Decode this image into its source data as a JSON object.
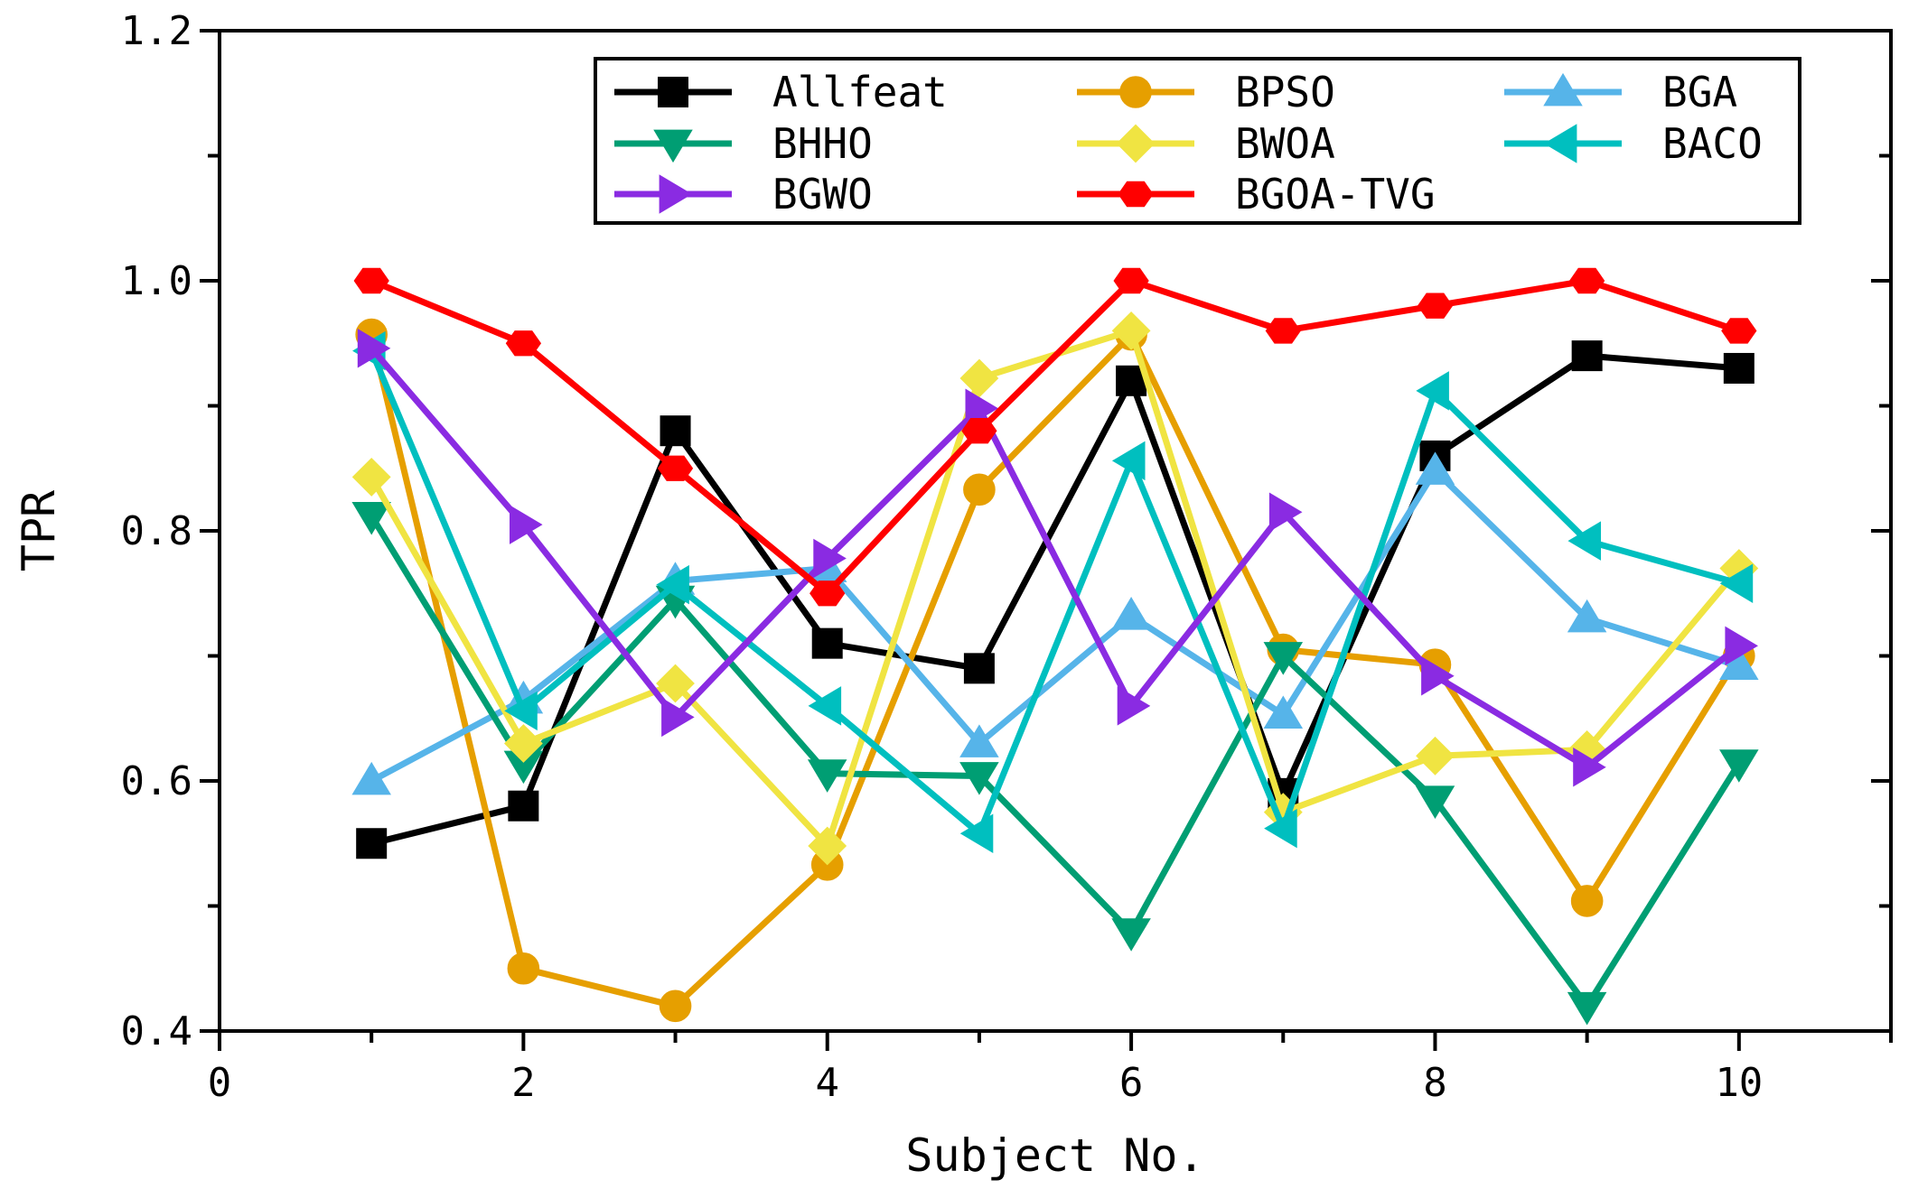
{
  "chart_data": {
    "type": "line",
    "title": "",
    "xlabel": "Subject No.",
    "ylabel": "TPR",
    "xlim": [
      0,
      11
    ],
    "ylim": [
      0.4,
      1.2
    ],
    "x_ticks": [
      0,
      2,
      4,
      6,
      8,
      10
    ],
    "x_tick_labels": [
      "0",
      "2",
      "4",
      "6",
      "8",
      "10"
    ],
    "y_ticks": [
      0.4,
      0.6,
      0.8,
      1.0,
      1.2
    ],
    "y_tick_labels": [
      "0.4",
      "0.6",
      "0.8",
      "1.0",
      "1.2"
    ],
    "grid": false,
    "legend_position": "top-right",
    "x": [
      1,
      2,
      3,
      4,
      5,
      6,
      7,
      8,
      9,
      10
    ],
    "series": [
      {
        "name": "Allfeat",
        "color": "#000000",
        "marker": "square",
        "values": [
          0.55,
          0.58,
          0.88,
          0.71,
          0.69,
          0.92,
          0.59,
          0.86,
          0.94,
          0.93
        ]
      },
      {
        "name": "BPSO",
        "color": "#E69F00",
        "marker": "circle",
        "values": [
          0.957,
          0.45,
          0.42,
          0.533,
          0.833,
          0.957,
          0.705,
          0.693,
          0.504,
          0.7
        ]
      },
      {
        "name": "BGA",
        "color": "#56B4E9",
        "marker": "triangle-up",
        "values": [
          0.6,
          0.665,
          0.76,
          0.77,
          0.63,
          0.732,
          0.653,
          0.848,
          0.73,
          0.692
        ]
      },
      {
        "name": "BHHO",
        "color": "#009E73",
        "marker": "triangle-down",
        "values": [
          0.812,
          0.613,
          0.745,
          0.606,
          0.604,
          0.479,
          0.7,
          0.585,
          0.42,
          0.614
        ]
      },
      {
        "name": "BWOA",
        "color": "#F0E442",
        "marker": "diamond",
        "values": [
          0.843,
          0.63,
          0.678,
          0.548,
          0.922,
          0.96,
          0.575,
          0.62,
          0.625,
          0.77
        ]
      },
      {
        "name": "BACO",
        "color": "#00BFBF",
        "marker": "triangle-left",
        "values": [
          0.944,
          0.656,
          0.757,
          0.66,
          0.558,
          0.856,
          0.562,
          0.912,
          0.792,
          0.758
        ]
      },
      {
        "name": "BGWO",
        "color": "#8A2BE2",
        "marker": "triangle-right",
        "values": [
          0.946,
          0.805,
          0.651,
          0.778,
          0.898,
          0.66,
          0.815,
          0.684,
          0.611,
          0.708
        ]
      },
      {
        "name": "BGOA-TVG",
        "color": "#FF0000",
        "marker": "hexagon",
        "values": [
          1.0,
          0.95,
          0.85,
          0.75,
          0.88,
          1.0,
          0.96,
          0.98,
          1.0,
          0.96
        ]
      }
    ],
    "legend_order": [
      "Allfeat",
      "BPSO",
      "BGA",
      "BHHO",
      "BWOA",
      "BACO",
      "BGWO",
      "BGOA-TVG"
    ]
  }
}
